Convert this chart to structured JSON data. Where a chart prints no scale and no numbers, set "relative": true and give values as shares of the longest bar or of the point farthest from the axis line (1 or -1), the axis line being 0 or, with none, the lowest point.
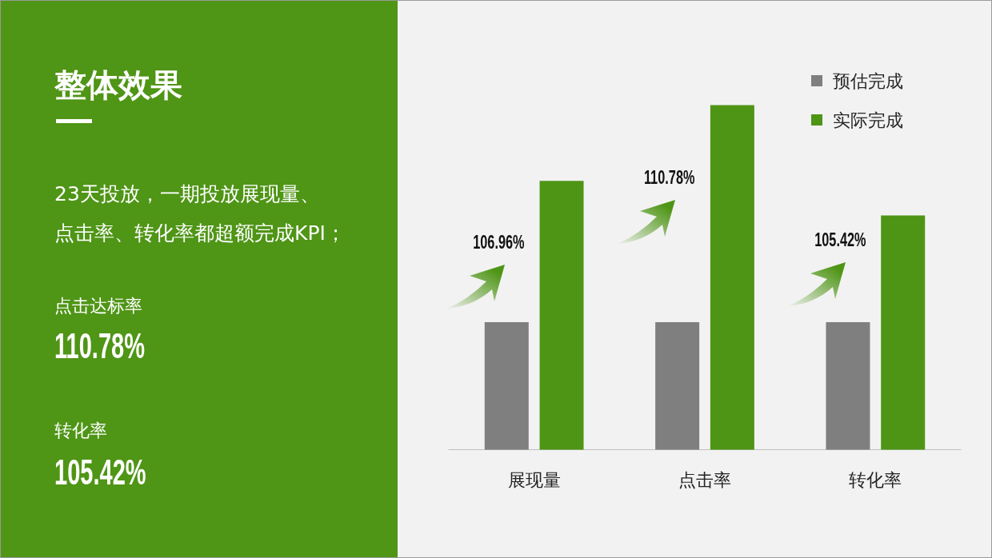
{
  "chart_data": {
    "type": "bar",
    "title": "整体效果",
    "categories": [
      "展现量",
      "点击率",
      "转化率"
    ],
    "series": [
      {
        "name": "预估完成",
        "color": "#7f7f7f",
        "values": [
          0.37,
          0.37,
          0.37
        ]
      },
      {
        "name": "实际完成",
        "color": "#4e9516",
        "values": [
          0.78,
          1,
          0.68
        ]
      }
    ],
    "relative": true,
    "legend": "top right",
    "annotations": [
      "23天投放，一期投放展现量、",
      "点击率、转化率都超额完成KPI；",
      "点击达标率",
      "110.78%",
      "转化率",
      "105.42%",
      "106.96%",
      "110.78%",
      "105.42%"
    ]
  }
}
